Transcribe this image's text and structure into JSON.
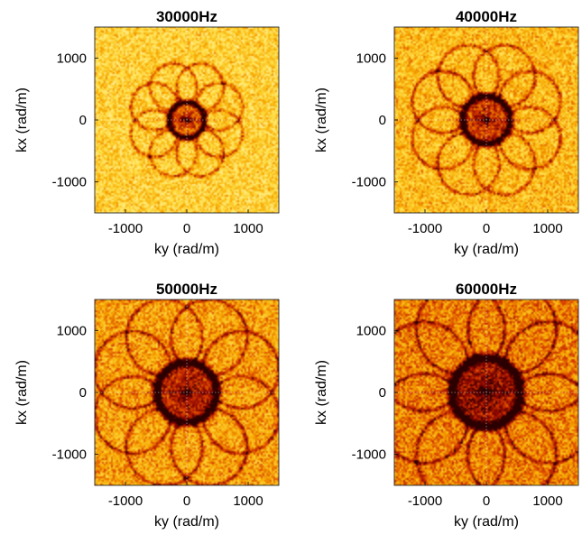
{
  "colormap": [
    "#fff8d2",
    "#ffe14a",
    "#f7a800",
    "#d93d00",
    "#8a0400",
    "#2a0000"
  ],
  "chart_data": [
    {
      "type": "heatmap",
      "title": "30000Hz",
      "xlabel": "ky (rad/m)",
      "ylabel": "kx (rad/m)",
      "xlim": [
        -1500,
        1500
      ],
      "ylim": [
        -1500,
        1500
      ],
      "xticks": [
        -1000,
        0,
        1000
      ],
      "yticks": [
        -1000,
        0,
        1000
      ],
      "xtick_labels": [
        "-1000",
        "0",
        "1000"
      ],
      "ytick_labels": [
        "-1000",
        "0",
        "1000"
      ],
      "frequency_hz": 30000,
      "main_ring_radius": 290,
      "side_arc_radius": 380
    },
    {
      "type": "heatmap",
      "title": "40000Hz",
      "xlabel": "ky (rad/m)",
      "ylabel": "kx (rad/m)",
      "xlim": [
        -1500,
        1500
      ],
      "ylim": [
        -1500,
        1500
      ],
      "xticks": [
        -1000,
        0,
        1000
      ],
      "yticks": [
        -1000,
        0,
        1000
      ],
      "xtick_labels": [
        "-1000",
        "0",
        "1000"
      ],
      "ytick_labels": [
        "-1000",
        "0",
        "1000"
      ],
      "frequency_hz": 40000,
      "main_ring_radius": 390,
      "side_arc_radius": 500
    },
    {
      "type": "heatmap",
      "title": "50000Hz",
      "xlabel": "ky (rad/m)",
      "ylabel": "kx (rad/m)",
      "xlim": [
        -1500,
        1500
      ],
      "ylim": [
        -1500,
        1500
      ],
      "xticks": [
        -1000,
        0,
        1000
      ],
      "yticks": [
        -1000,
        0,
        1000
      ],
      "xtick_labels": [
        "-1000",
        "0",
        "1000"
      ],
      "ytick_labels": [
        "-1000",
        "0",
        "1000"
      ],
      "frequency_hz": 50000,
      "main_ring_radius": 490,
      "side_arc_radius": 620
    },
    {
      "type": "heatmap",
      "title": "60000Hz",
      "xlabel": "ky (rad/m)",
      "ylabel": "kx (rad/m)",
      "xlim": [
        -1500,
        1500
      ],
      "ylim": [
        -1500,
        1500
      ],
      "xticks": [
        -1000,
        0,
        1000
      ],
      "yticks": [
        -1000,
        0,
        1000
      ],
      "xtick_labels": [
        "-1000",
        "0",
        "1000"
      ],
      "ytick_labels": [
        "-1000",
        "0",
        "1000"
      ],
      "frequency_hz": 60000,
      "main_ring_radius": 560,
      "side_arc_radius": 720
    }
  ]
}
